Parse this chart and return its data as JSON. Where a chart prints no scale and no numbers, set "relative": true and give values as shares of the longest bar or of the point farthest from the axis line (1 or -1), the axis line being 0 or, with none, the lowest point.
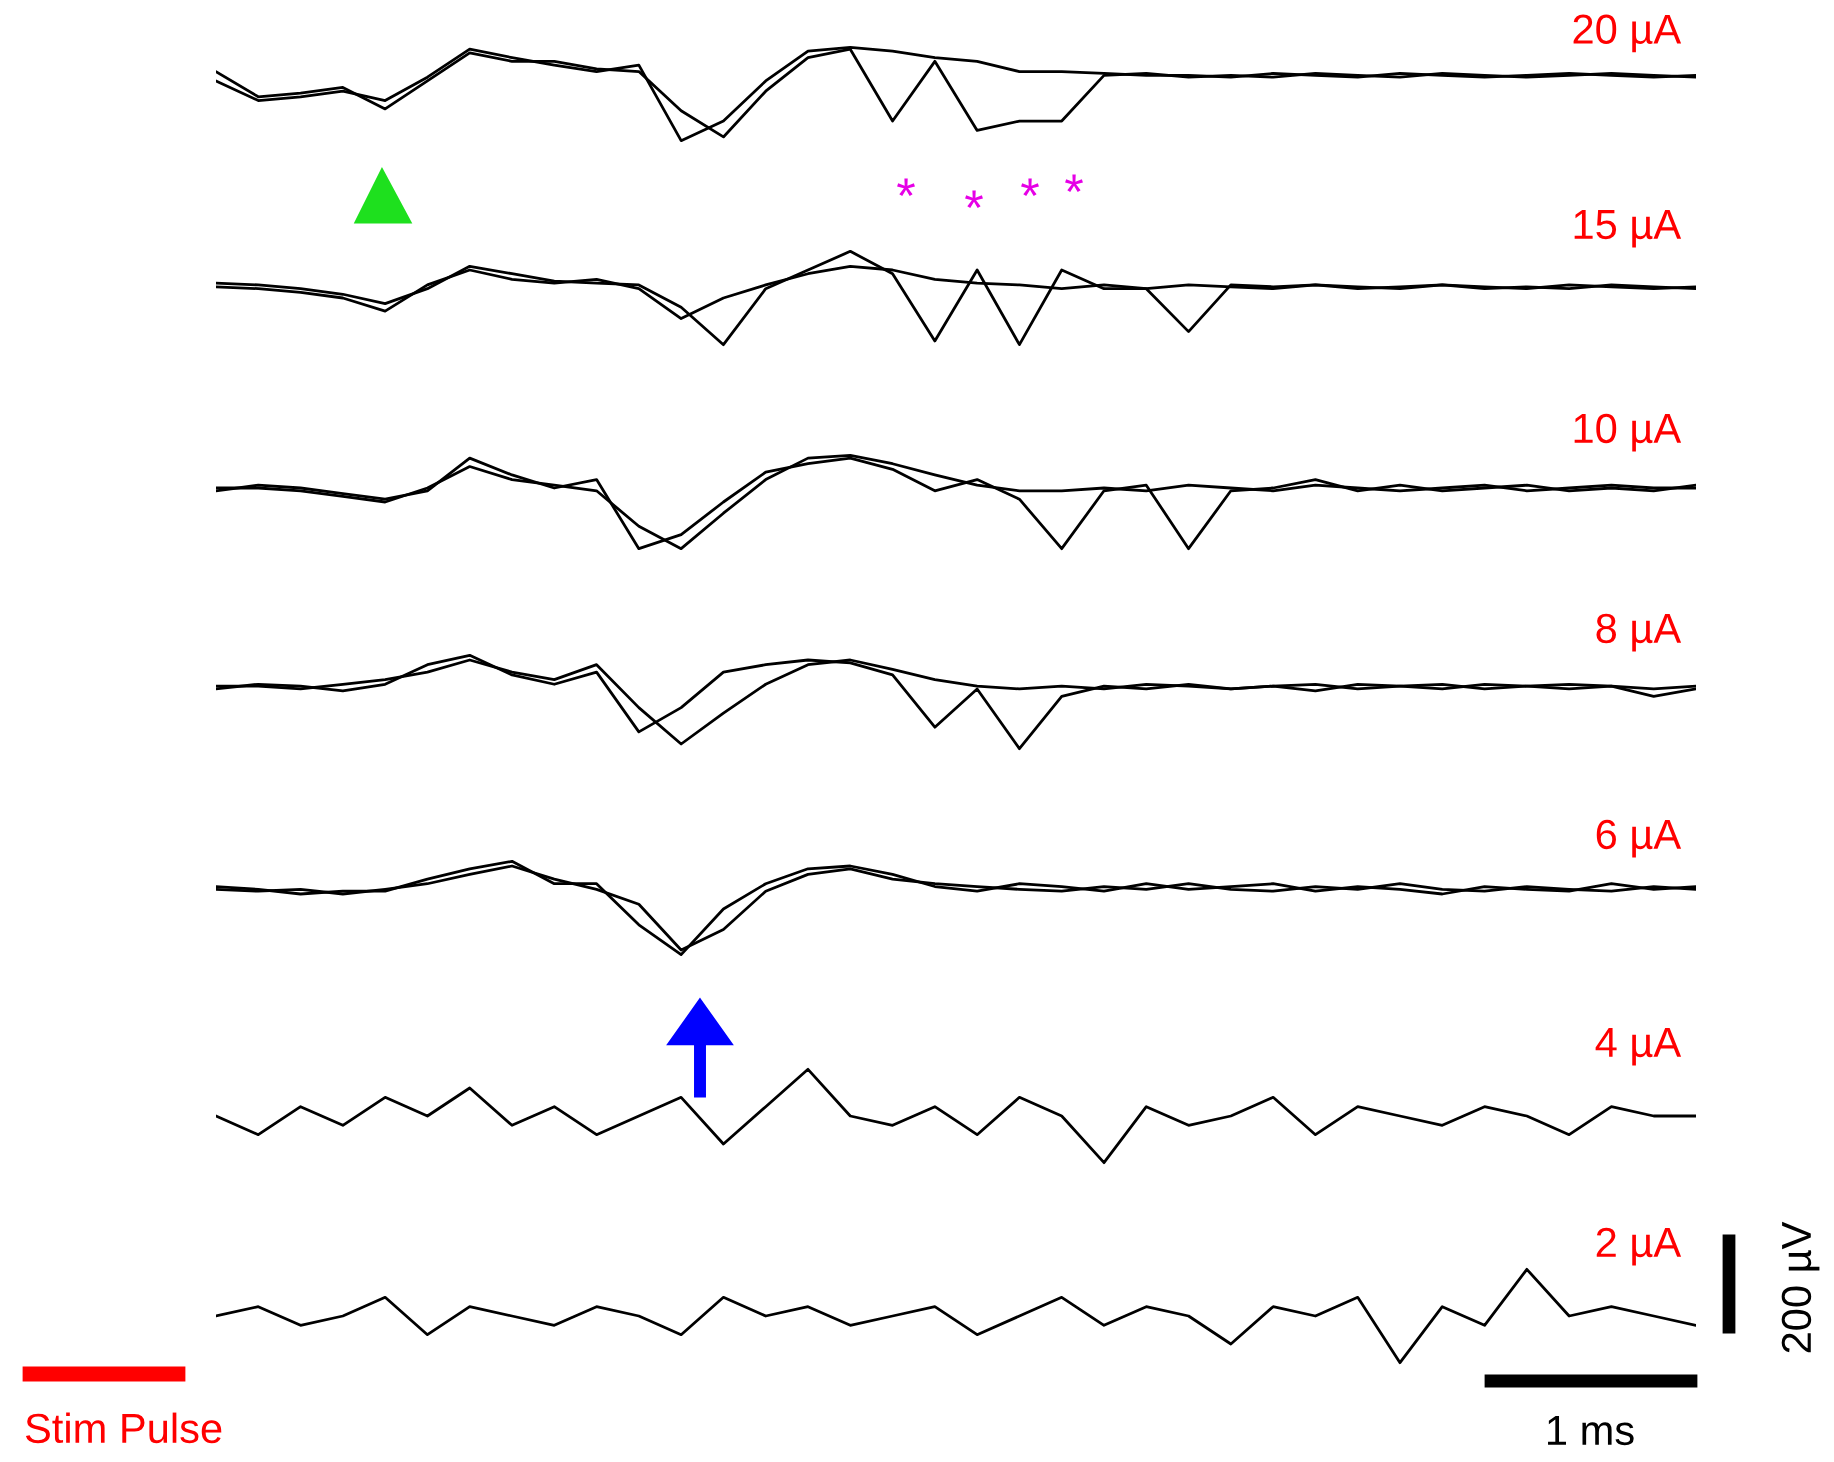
{
  "chart_data": [
    {
      "type": "line",
      "relative": true,
      "tick_labels": false,
      "annotations": [
        "20 µA",
        "*",
        "*",
        "*",
        "*"
      ],
      "categories": [
        null,
        null,
        null,
        null,
        null,
        null,
        null,
        null,
        null,
        null,
        null,
        null,
        null,
        null,
        null,
        null,
        null,
        null,
        null,
        null,
        null,
        null,
        null,
        null,
        null,
        null,
        null,
        null,
        null,
        null,
        null,
        null,
        null,
        null,
        null,
        null
      ],
      "series": [
        {
          "color": "#000000",
          "values": [
            0.64,
            0.43,
            0.47,
            0.53,
            0.43,
            0.68,
            0.98,
            0.89,
            0.81,
            0.74,
            0.81,
            0,
            0.21,
            0.64,
            0.96,
            1,
            0.96,
            0.89,
            0.85,
            0.74,
            0.74,
            0.72,
            0.7,
            0.7,
            0.68,
            0.72,
            0.7,
            0.68,
            0.72,
            0.7,
            0.68,
            0.7,
            0.72,
            0.7,
            0.68,
            0.7
          ]
        },
        {
          "color": "#000000",
          "values": [
            0.74,
            0.47,
            0.51,
            0.57,
            0.34,
            0.64,
            0.94,
            0.85,
            0.85,
            0.77,
            0.74,
            0.32,
            0.04,
            0.53,
            0.89,
            0.98,
            0.21,
            0.85,
            0.11,
            0.21,
            0.21,
            0.7,
            0.72,
            0.68,
            0.7,
            0.68,
            0.72,
            0.7,
            0.68,
            0.72,
            0.7,
            0.68,
            0.7,
            0.72,
            0.7,
            0.68
          ]
        }
      ]
    },
    {
      "type": "line",
      "relative": true,
      "tick_labels": false,
      "annotations": [
        "15 µA"
      ],
      "categories": [
        null,
        null,
        null,
        null,
        null,
        null,
        null,
        null,
        null,
        null,
        null,
        null,
        null,
        null,
        null,
        null,
        null,
        null,
        null,
        null,
        null,
        null,
        null,
        null,
        null,
        null,
        null,
        null,
        null,
        null,
        null,
        null,
        null,
        null,
        null,
        null
      ],
      "series": [
        {
          "color": "#000000",
          "values": [
            0.62,
            0.6,
            0.56,
            0.5,
            0.36,
            0.64,
            0.8,
            0.7,
            0.66,
            0.7,
            0.6,
            0.28,
            0.5,
            0.64,
            0.76,
            0.84,
            0.8,
            0.7,
            0.66,
            0.64,
            0.6,
            0.64,
            0.6,
            0.64,
            0.62,
            0.6,
            0.64,
            0.62,
            0.6,
            0.64,
            0.62,
            0.6,
            0.64,
            0.62,
            0.6,
            0.62
          ]
        },
        {
          "color": "#000000",
          "values": [
            0.66,
            0.64,
            0.6,
            0.54,
            0.44,
            0.6,
            0.84,
            0.76,
            0.68,
            0.66,
            0.64,
            0.4,
            0,
            0.6,
            0.8,
            1,
            0.76,
            0.04,
            0.8,
            0,
            0.8,
            0.6,
            0.6,
            0.14,
            0.64,
            0.62,
            0.64,
            0.6,
            0.62,
            0.64,
            0.6,
            0.62,
            0.6,
            0.64,
            0.62,
            0.6
          ]
        }
      ]
    },
    {
      "type": "line",
      "relative": true,
      "tick_labels": false,
      "annotations": [
        "10 µA"
      ],
      "categories": [
        null,
        null,
        null,
        null,
        null,
        null,
        null,
        null,
        null,
        null,
        null,
        null,
        null,
        null,
        null,
        null,
        null,
        null,
        null,
        null,
        null,
        null,
        null,
        null,
        null,
        null,
        null,
        null,
        null,
        null,
        null,
        null,
        null,
        null,
        null,
        null
      ],
      "series": [
        {
          "color": "#000000",
          "values": [
            0.65,
            0.65,
            0.62,
            0.56,
            0.5,
            0.65,
            0.88,
            0.74,
            0.68,
            0.62,
            0.24,
            0,
            0.38,
            0.74,
            0.97,
            1,
            0.91,
            0.79,
            0.68,
            0.62,
            0.62,
            0.65,
            0.62,
            0.68,
            0.65,
            0.62,
            0.68,
            0.65,
            0.62,
            0.65,
            0.68,
            0.62,
            0.65,
            0.68,
            0.65,
            0.65
          ]
        },
        {
          "color": "#000000",
          "values": [
            0.62,
            0.68,
            0.65,
            0.59,
            0.53,
            0.62,
            0.97,
            0.79,
            0.65,
            0.74,
            0,
            0.15,
            0.5,
            0.82,
            0.91,
            0.97,
            0.85,
            0.62,
            0.74,
            0.53,
            0,
            0.62,
            0.68,
            0,
            0.62,
            0.65,
            0.74,
            0.62,
            0.68,
            0.62,
            0.65,
            0.68,
            0.62,
            0.65,
            0.62,
            0.68
          ]
        }
      ]
    },
    {
      "type": "line",
      "relative": true,
      "tick_labels": false,
      "annotations": [
        "8 µA"
      ],
      "categories": [
        null,
        null,
        null,
        null,
        null,
        null,
        null,
        null,
        null,
        null,
        null,
        null,
        null,
        null,
        null,
        null,
        null,
        null,
        null,
        null,
        null,
        null,
        null,
        null,
        null,
        null,
        null,
        null,
        null,
        null,
        null,
        null,
        null,
        null,
        null,
        null
      ],
      "series": [
        {
          "color": "#000000",
          "values": [
            0.67,
            0.67,
            0.64,
            0.69,
            0.74,
            0.82,
            0.95,
            0.82,
            0.74,
            0.9,
            0.44,
            0.05,
            0.38,
            0.69,
            0.9,
            0.95,
            0.85,
            0.74,
            0.67,
            0.64,
            0.67,
            0.64,
            0.69,
            0.67,
            0.64,
            0.67,
            0.69,
            0.64,
            0.67,
            0.69,
            0.64,
            0.67,
            0.69,
            0.67,
            0.64,
            0.67
          ]
        },
        {
          "color": "#000000",
          "values": [
            0.64,
            0.69,
            0.67,
            0.62,
            0.69,
            0.9,
            1,
            0.79,
            0.69,
            0.82,
            0.18,
            0.44,
            0.82,
            0.9,
            0.95,
            0.92,
            0.79,
            0.23,
            0.64,
            0,
            0.56,
            0.67,
            0.64,
            0.69,
            0.64,
            0.67,
            0.62,
            0.69,
            0.67,
            0.64,
            0.69,
            0.67,
            0.64,
            0.67,
            0.56,
            0.64
          ]
        }
      ]
    },
    {
      "type": "line",
      "relative": true,
      "tick_labels": false,
      "annotations": [
        "6 µA"
      ],
      "categories": [
        null,
        null,
        null,
        null,
        null,
        null,
        null,
        null,
        null,
        null,
        null,
        null,
        null,
        null,
        null,
        null,
        null,
        null,
        null,
        null,
        null,
        null,
        null,
        null,
        null,
        null,
        null,
        null,
        null,
        null,
        null,
        null,
        null,
        null,
        null,
        null
      ],
      "series": [
        {
          "color": "#000000",
          "values": [
            0.7,
            0.68,
            0.7,
            0.65,
            0.7,
            0.76,
            0.86,
            0.95,
            0.81,
            0.7,
            0.54,
            0.05,
            0.27,
            0.68,
            0.86,
            0.92,
            0.81,
            0.76,
            0.73,
            0.7,
            0.68,
            0.73,
            0.7,
            0.76,
            0.7,
            0.68,
            0.73,
            0.7,
            0.76,
            0.7,
            0.68,
            0.73,
            0.7,
            0.68,
            0.73,
            0.7
          ]
        },
        {
          "color": "#000000",
          "values": [
            0.73,
            0.7,
            0.65,
            0.68,
            0.68,
            0.81,
            0.92,
            1,
            0.76,
            0.76,
            0.32,
            0,
            0.49,
            0.76,
            0.92,
            0.95,
            0.86,
            0.73,
            0.68,
            0.76,
            0.73,
            0.68,
            0.76,
            0.7,
            0.73,
            0.76,
            0.68,
            0.73,
            0.7,
            0.65,
            0.73,
            0.7,
            0.68,
            0.76,
            0.7,
            0.73
          ]
        }
      ]
    },
    {
      "type": "line",
      "relative": true,
      "tick_labels": false,
      "annotations": [
        "4 µA"
      ],
      "categories": [
        null,
        null,
        null,
        null,
        null,
        null,
        null,
        null,
        null,
        null,
        null,
        null,
        null,
        null,
        null,
        null,
        null,
        null,
        null,
        null,
        null,
        null,
        null,
        null,
        null,
        null,
        null,
        null,
        null,
        null,
        null,
        null,
        null,
        null,
        null,
        null
      ],
      "series": [
        {
          "color": "#000000",
          "values": [
            0.5,
            0.3,
            0.6,
            0.4,
            0.7,
            0.5,
            0.8,
            0.4,
            0.6,
            0.3,
            0.5,
            0.7,
            0.2,
            0.6,
            1,
            0.5,
            0.4,
            0.6,
            0.3,
            0.7,
            0.5,
            0,
            0.6,
            0.4,
            0.5,
            0.7,
            0.3,
            0.6,
            0.5,
            0.4,
            0.6,
            0.5,
            0.3,
            0.6,
            0.5,
            0.5
          ]
        }
      ]
    },
    {
      "type": "line",
      "relative": true,
      "tick_labels": false,
      "annotations": [
        "2 µA",
        "1 ms",
        "200 µV",
        "Stim Pulse"
      ],
      "categories": [
        null,
        null,
        null,
        null,
        null,
        null,
        null,
        null,
        null,
        null,
        null,
        null,
        null,
        null,
        null,
        null,
        null,
        null,
        null,
        null,
        null,
        null,
        null,
        null,
        null,
        null,
        null,
        null,
        null,
        null,
        null,
        null,
        null,
        null,
        null,
        null
      ],
      "series": [
        {
          "color": "#000000",
          "values": [
            0.5,
            0.6,
            0.4,
            0.5,
            0.7,
            0.3,
            0.6,
            0.5,
            0.4,
            0.6,
            0.5,
            0.3,
            0.7,
            0.5,
            0.6,
            0.4,
            0.5,
            0.6,
            0.3,
            0.5,
            0.7,
            0.4,
            0.6,
            0.5,
            0.2,
            0.6,
            0.5,
            0.7,
            0,
            0.6,
            0.4,
            1,
            0.5,
            0.6,
            0.5,
            0.4
          ]
        }
      ]
    }
  ]
}
